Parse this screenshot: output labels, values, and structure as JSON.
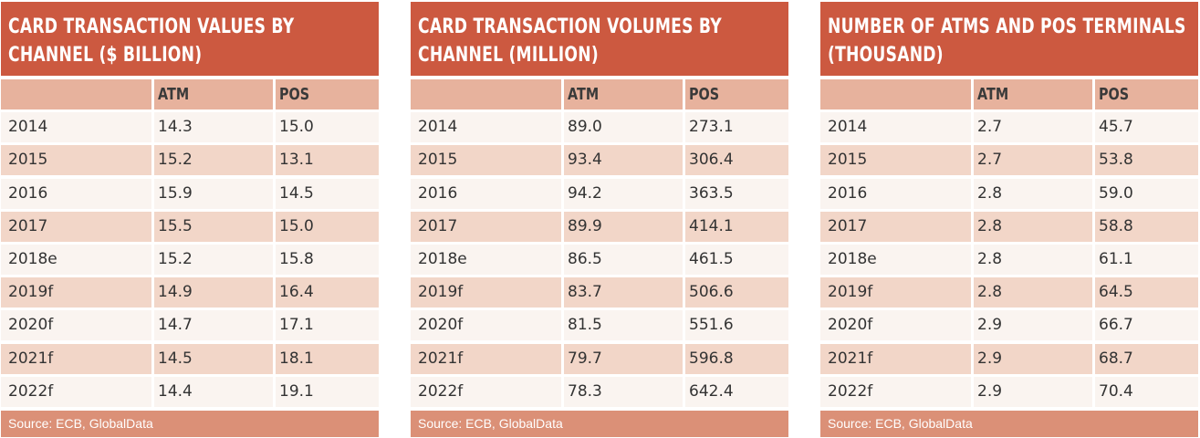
{
  "source_text": "Source: ECB, GlobalData",
  "chart_data": [
    {
      "type": "table",
      "title": "CARD TRANSACTION VALUES BY CHANNEL ($ BILLION)",
      "title_lines": [
        "CARD TRANSACTION VALUES BY",
        "CHANNEL ($ BILLION)"
      ],
      "columns": [
        "",
        "ATM",
        "POS"
      ],
      "rows": [
        [
          "2014",
          "14.3",
          "15.0"
        ],
        [
          "2015",
          "15.2",
          "13.1"
        ],
        [
          "2016",
          "15.9",
          "14.5"
        ],
        [
          "2017",
          "15.5",
          "15.0"
        ],
        [
          "2018e",
          "15.2",
          "15.8"
        ],
        [
          "2019f",
          "14.9",
          "16.4"
        ],
        [
          "2020f",
          "14.7",
          "17.1"
        ],
        [
          "2021f",
          "14.5",
          "18.1"
        ],
        [
          "2022f",
          "14.4",
          "19.1"
        ]
      ],
      "source": "Source: ECB, GlobalData"
    },
    {
      "type": "table",
      "title": "CARD TRANSACTION VOLUMES BY CHANNEL (MILLION)",
      "title_lines": [
        "CARD TRANSACTION VOLUMES BY",
        "CHANNEL (MILLION)"
      ],
      "columns": [
        "",
        "ATM",
        "POS"
      ],
      "rows": [
        [
          "2014",
          "89.0",
          "273.1"
        ],
        [
          "2015",
          "93.4",
          "306.4"
        ],
        [
          "2016",
          "94.2",
          "363.5"
        ],
        [
          "2017",
          "89.9",
          "414.1"
        ],
        [
          "2018e",
          "86.5",
          "461.5"
        ],
        [
          "2019f",
          "83.7",
          "506.6"
        ],
        [
          "2020f",
          "81.5",
          "551.6"
        ],
        [
          "2021f",
          "79.7",
          "596.8"
        ],
        [
          "2022f",
          "78.3",
          "642.4"
        ]
      ],
      "source": "Source: ECB, GlobalData"
    },
    {
      "type": "table",
      "title": "NUMBER OF ATMS AND POS TERMINALS (THOUSAND)",
      "title_lines": [
        "NUMBER OF ATMS AND POS TERMINALS",
        "(THOUSAND)"
      ],
      "columns": [
        "",
        "ATM",
        "POS"
      ],
      "rows": [
        [
          "2014",
          "2.7",
          "45.7"
        ],
        [
          "2015",
          "2.7",
          "53.8"
        ],
        [
          "2016",
          "2.8",
          "59.0"
        ],
        [
          "2017",
          "2.8",
          "58.8"
        ],
        [
          "2018e",
          "2.8",
          "61.1"
        ],
        [
          "2019f",
          "2.8",
          "64.5"
        ],
        [
          "2020f",
          "2.9",
          "66.7"
        ],
        [
          "2021f",
          "2.9",
          "68.7"
        ],
        [
          "2022f",
          "2.9",
          "70.4"
        ]
      ],
      "source": "Source: ECB, GlobalData"
    }
  ],
  "colors": {
    "title_bg": "#cc5940",
    "header_bg": "#e7b29d",
    "row_light": "#faf4f0",
    "row_dark": "#f2d6c8",
    "source_bg": "#db9077"
  }
}
